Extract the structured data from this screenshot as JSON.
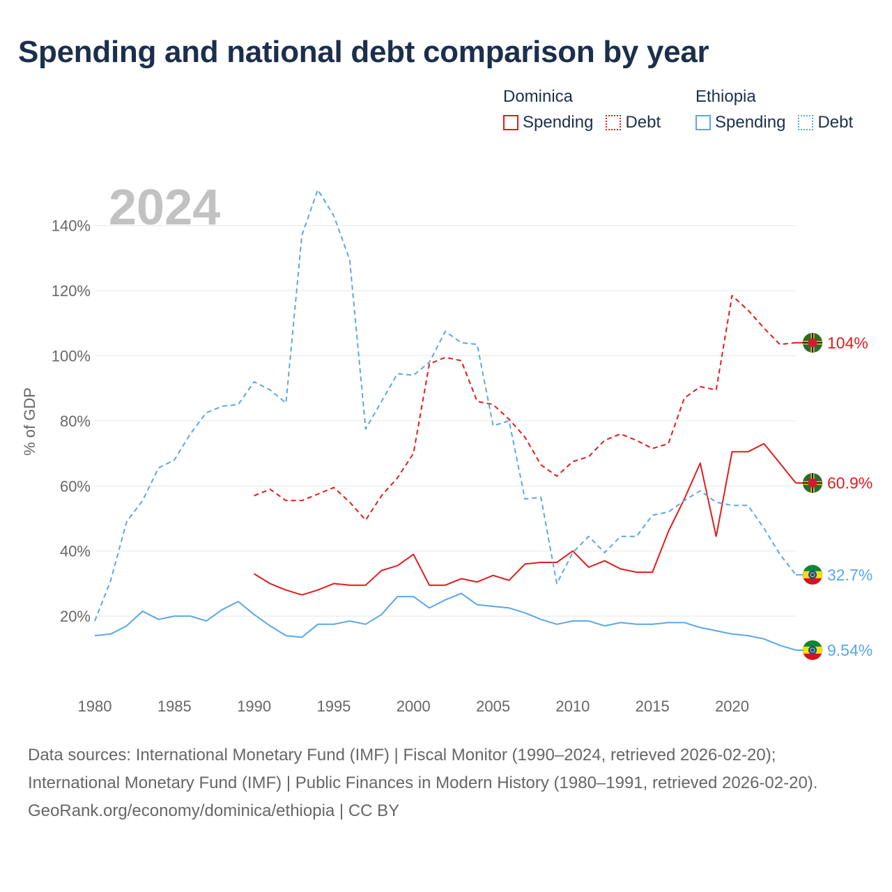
{
  "title": "Spending and national debt comparison by year",
  "legend": {
    "groups": [
      {
        "country": "Dominica",
        "spending_label": "Spending",
        "debt_label": "Debt",
        "color": "#e31a1c"
      },
      {
        "country": "Ethiopia",
        "spending_label": "Spending",
        "debt_label": "Debt",
        "color": "#5aa7e6"
      }
    ]
  },
  "footer": {
    "sources": "Data sources: International Monetary Fund (IMF) | Fiscal Monitor (1990–2024, retrieved 2026-02-20); International Monetary Fund (IMF) | Public Finances in Modern History (1980–1991, retrieved 2026-02-20).",
    "credit": "GeoRank.org/economy/dominica/ethiopia | CC BY"
  },
  "chart_data": {
    "type": "line",
    "title": "Spending and national debt comparison by year",
    "year_label": "2024",
    "ylabel": "% of GDP",
    "xlabel": "",
    "xlim": [
      1980,
      2024
    ],
    "ylim": [
      0,
      150
    ],
    "x_ticks": [
      1980,
      1985,
      1990,
      1995,
      2000,
      2005,
      2010,
      2015,
      2020
    ],
    "y_ticks": [
      20,
      40,
      60,
      80,
      100,
      120,
      140
    ],
    "y_tick_labels": [
      "20%",
      "40%",
      "60%",
      "80%",
      "100%",
      "120%",
      "140%"
    ],
    "grid": true,
    "series": [
      {
        "name": "Dominica Debt",
        "country": "Dominica",
        "kind": "debt",
        "color": "#e31a1c",
        "dashed": true,
        "end_label": "104%",
        "flag": "dominica",
        "points": [
          [
            1990,
            57
          ],
          [
            1991,
            59
          ],
          [
            1992,
            55.5
          ],
          [
            1993,
            55.5
          ],
          [
            1994,
            57.5
          ],
          [
            1995,
            59.5
          ],
          [
            1996,
            55
          ],
          [
            1997,
            49.5
          ],
          [
            1998,
            57
          ],
          [
            1999,
            62.5
          ],
          [
            2000,
            70
          ],
          [
            2001,
            97.5
          ],
          [
            2002,
            99.5
          ],
          [
            2003,
            98.5
          ],
          [
            2004,
            86
          ],
          [
            2005,
            85
          ],
          [
            2006,
            80.5
          ],
          [
            2007,
            75
          ],
          [
            2008,
            66.5
          ],
          [
            2009,
            63
          ],
          [
            2010,
            67.5
          ],
          [
            2011,
            69
          ],
          [
            2012,
            74
          ],
          [
            2013,
            76
          ],
          [
            2014,
            74
          ],
          [
            2015,
            71.5
          ],
          [
            2016,
            73
          ],
          [
            2017,
            87
          ],
          [
            2018,
            90.5
          ],
          [
            2019,
            89.5
          ],
          [
            2020,
            118.5
          ],
          [
            2021,
            114
          ],
          [
            2022,
            108.5
          ],
          [
            2023,
            103.5
          ],
          [
            2024,
            104
          ]
        ]
      },
      {
        "name": "Dominica Spending",
        "country": "Dominica",
        "kind": "spending",
        "color": "#e31a1c",
        "dashed": false,
        "end_label": "60.9%",
        "flag": "dominica",
        "points": [
          [
            1990,
            33
          ],
          [
            1991,
            30
          ],
          [
            1992,
            28
          ],
          [
            1993,
            26.5
          ],
          [
            1994,
            28
          ],
          [
            1995,
            30
          ],
          [
            1996,
            29.5
          ],
          [
            1997,
            29.5
          ],
          [
            1998,
            34
          ],
          [
            1999,
            35.5
          ],
          [
            2000,
            39
          ],
          [
            2001,
            29.5
          ],
          [
            2002,
            29.5
          ],
          [
            2003,
            31.5
          ],
          [
            2004,
            30.5
          ],
          [
            2005,
            32.5
          ],
          [
            2006,
            31
          ],
          [
            2007,
            36
          ],
          [
            2008,
            36.5
          ],
          [
            2009,
            36.5
          ],
          [
            2010,
            40
          ],
          [
            2011,
            35
          ],
          [
            2012,
            37
          ],
          [
            2013,
            34.5
          ],
          [
            2014,
            33.5
          ],
          [
            2015,
            33.5
          ],
          [
            2016,
            46
          ],
          [
            2017,
            56
          ],
          [
            2018,
            67
          ],
          [
            2019,
            44.5
          ],
          [
            2020,
            70.5
          ],
          [
            2021,
            70.5
          ],
          [
            2022,
            73
          ],
          [
            2023,
            67
          ],
          [
            2024,
            60.9
          ]
        ]
      },
      {
        "name": "Ethiopia Debt",
        "country": "Ethiopia",
        "kind": "debt",
        "color": "#5aa7e6",
        "dashed": true,
        "end_label": "32.7%",
        "flag": "ethiopia",
        "points": [
          [
            1980,
            18.5
          ],
          [
            1981,
            31
          ],
          [
            1982,
            49
          ],
          [
            1983,
            55.5
          ],
          [
            1984,
            65.5
          ],
          [
            1985,
            68
          ],
          [
            1986,
            76
          ],
          [
            1987,
            82.5
          ],
          [
            1988,
            84.5
          ],
          [
            1989,
            85
          ],
          [
            1990,
            92
          ],
          [
            1991,
            89.5
          ],
          [
            1992,
            85.5
          ],
          [
            1993,
            137
          ],
          [
            1994,
            151
          ],
          [
            1995,
            143
          ],
          [
            1996,
            129.5
          ],
          [
            1997,
            77.5
          ],
          [
            1998,
            86
          ],
          [
            1999,
            94.5
          ],
          [
            2000,
            94
          ],
          [
            2001,
            98
          ],
          [
            2002,
            107.5
          ],
          [
            2003,
            104
          ],
          [
            2004,
            103.5
          ],
          [
            2005,
            78.5
          ],
          [
            2006,
            80
          ],
          [
            2007,
            56
          ],
          [
            2008,
            56.5
          ],
          [
            2009,
            30
          ],
          [
            2010,
            39.5
          ],
          [
            2011,
            44.5
          ],
          [
            2012,
            39.5
          ],
          [
            2013,
            44.5
          ],
          [
            2014,
            44.5
          ],
          [
            2015,
            51
          ],
          [
            2016,
            52
          ],
          [
            2017,
            55.5
          ],
          [
            2018,
            58.5
          ],
          [
            2019,
            55
          ],
          [
            2020,
            54
          ],
          [
            2021,
            54
          ],
          [
            2022,
            47
          ],
          [
            2023,
            39
          ],
          [
            2024,
            32.7
          ]
        ]
      },
      {
        "name": "Ethiopia Spending",
        "country": "Ethiopia",
        "kind": "spending",
        "color": "#5aa7e6",
        "dashed": false,
        "end_label": "9.54%",
        "flag": "ethiopia",
        "points": [
          [
            1980,
            14
          ],
          [
            1981,
            14.5
          ],
          [
            1982,
            17
          ],
          [
            1983,
            21.5
          ],
          [
            1984,
            19
          ],
          [
            1985,
            20
          ],
          [
            1986,
            20
          ],
          [
            1987,
            18.5
          ],
          [
            1988,
            22
          ],
          [
            1989,
            24.5
          ],
          [
            1990,
            20.5
          ],
          [
            1991,
            17
          ],
          [
            1992,
            14
          ],
          [
            1993,
            13.5
          ],
          [
            1994,
            17.5
          ],
          [
            1995,
            17.5
          ],
          [
            1996,
            18.5
          ],
          [
            1997,
            17.5
          ],
          [
            1998,
            20.5
          ],
          [
            1999,
            26
          ],
          [
            2000,
            26
          ],
          [
            2001,
            22.5
          ],
          [
            2002,
            25
          ],
          [
            2003,
            27
          ],
          [
            2004,
            23.5
          ],
          [
            2005,
            23
          ],
          [
            2006,
            22.5
          ],
          [
            2007,
            21
          ],
          [
            2008,
            19
          ],
          [
            2009,
            17.5
          ],
          [
            2010,
            18.5
          ],
          [
            2011,
            18.5
          ],
          [
            2012,
            17
          ],
          [
            2013,
            18
          ],
          [
            2014,
            17.5
          ],
          [
            2015,
            17.5
          ],
          [
            2016,
            18
          ],
          [
            2017,
            18
          ],
          [
            2018,
            16.5
          ],
          [
            2019,
            15.5
          ],
          [
            2020,
            14.5
          ],
          [
            2021,
            14
          ],
          [
            2022,
            13
          ],
          [
            2023,
            11
          ],
          [
            2024,
            9.54
          ]
        ]
      }
    ]
  }
}
